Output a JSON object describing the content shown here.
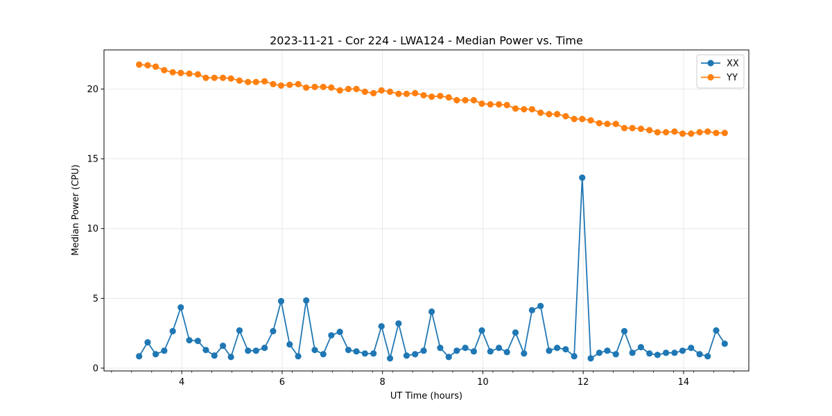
{
  "chart_data": {
    "type": "line",
    "title": "2023-11-21 - Cor 224 - LWA124 - Median Power vs. Time",
    "xlabel": "UT Time (hours)",
    "ylabel": "Median Power (CPU)",
    "xlim": [
      2.45,
      15.3
    ],
    "ylim": [
      -0.2,
      22.8
    ],
    "xticks": [
      4,
      6,
      8,
      10,
      12,
      14
    ],
    "xtick_labels": [
      "4",
      "6",
      "8",
      "10",
      "12",
      "14"
    ],
    "yticks": [
      0,
      5,
      10,
      15,
      20
    ],
    "ytick_labels": [
      "0",
      "5",
      "10",
      "15",
      "20"
    ],
    "grid": true,
    "legend_position": "top-right",
    "x": [
      3.15,
      3.32,
      3.48,
      3.65,
      3.82,
      3.98,
      4.15,
      4.32,
      4.48,
      4.65,
      4.82,
      4.98,
      5.15,
      5.32,
      5.48,
      5.65,
      5.82,
      5.98,
      6.15,
      6.32,
      6.48,
      6.65,
      6.82,
      6.98,
      7.15,
      7.32,
      7.48,
      7.65,
      7.82,
      7.98,
      8.15,
      8.32,
      8.48,
      8.65,
      8.82,
      8.98,
      9.15,
      9.32,
      9.48,
      9.65,
      9.82,
      9.98,
      10.15,
      10.32,
      10.48,
      10.65,
      10.82,
      10.98,
      11.15,
      11.32,
      11.48,
      11.65,
      11.82,
      11.98,
      12.15,
      12.32,
      12.48,
      12.65,
      12.82,
      12.98,
      13.15,
      13.32,
      13.48,
      13.65,
      13.82,
      13.98,
      14.15,
      14.32,
      14.48,
      14.65,
      14.82
    ],
    "series": [
      {
        "name": "XX",
        "color": "#1f77b4",
        "values": [
          0.85,
          1.85,
          1.0,
          1.25,
          2.65,
          4.35,
          2.0,
          1.95,
          1.3,
          0.9,
          1.6,
          0.8,
          2.7,
          1.25,
          1.25,
          1.45,
          2.65,
          4.8,
          1.7,
          0.85,
          4.85,
          1.3,
          1.0,
          2.35,
          2.6,
          1.3,
          1.2,
          1.05,
          1.05,
          3.0,
          0.7,
          3.2,
          0.9,
          1.0,
          1.25,
          4.05,
          1.45,
          0.8,
          1.25,
          1.45,
          1.2,
          2.7,
          1.2,
          1.45,
          1.15,
          2.55,
          1.05,
          4.15,
          4.45,
          1.25,
          1.45,
          1.35,
          0.85,
          13.65,
          0.7,
          1.1,
          1.25,
          1.0,
          2.65,
          1.1,
          1.5,
          1.05,
          0.95,
          1.1,
          1.1,
          1.25,
          1.45,
          1.0,
          0.85,
          2.7,
          1.75
        ]
      },
      {
        "name": "YY",
        "color": "#ff7f0e",
        "values": [
          21.75,
          21.7,
          21.6,
          21.35,
          21.2,
          21.15,
          21.1,
          21.05,
          20.8,
          20.8,
          20.8,
          20.75,
          20.6,
          20.5,
          20.5,
          20.55,
          20.35,
          20.25,
          20.3,
          20.35,
          20.1,
          20.15,
          20.15,
          20.1,
          19.9,
          20.0,
          20.0,
          19.8,
          19.7,
          19.9,
          19.8,
          19.65,
          19.65,
          19.7,
          19.55,
          19.45,
          19.5,
          19.4,
          19.2,
          19.2,
          19.2,
          18.95,
          18.9,
          18.9,
          18.85,
          18.6,
          18.55,
          18.55,
          18.3,
          18.2,
          18.2,
          18.05,
          17.85,
          17.85,
          17.75,
          17.55,
          17.5,
          17.5,
          17.2,
          17.2,
          17.15,
          17.05,
          16.9,
          16.9,
          16.95,
          16.8,
          16.8,
          16.9,
          16.95,
          16.85,
          16.85
        ]
      }
    ]
  }
}
